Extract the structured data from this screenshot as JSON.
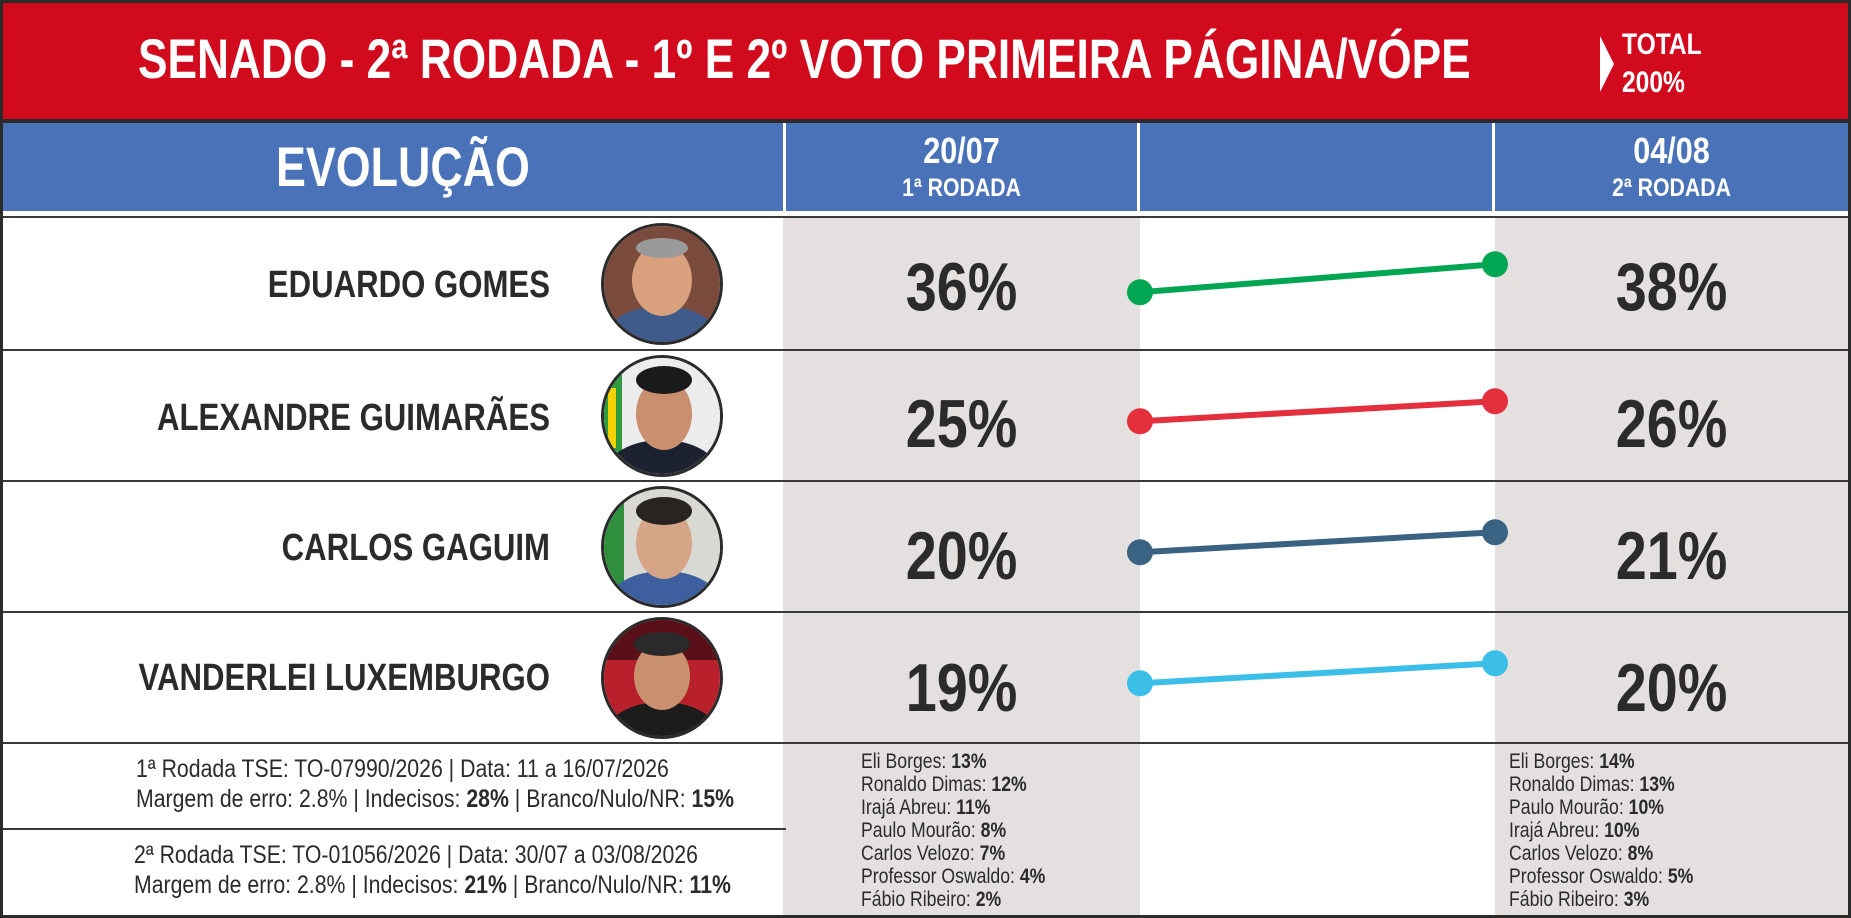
{
  "header": {
    "title": "SENADO - 2ª RODADA - 1º E 2º VOTO PRIMEIRA PÁGINA/VÓPE",
    "total_label": "TOTAL",
    "total_value": "200%",
    "background_color": "#d10a1e"
  },
  "columns": {
    "evolucao_label": "EVOLUÇÃO",
    "round1": {
      "date": "20/07",
      "label": "1ª RODADA"
    },
    "round2": {
      "date": "04/08",
      "label": "2ª RODADA"
    },
    "header_color": "#4a72b8"
  },
  "candidates": [
    {
      "name": "EDUARDO GOMES",
      "r1": "36%",
      "r2": "38%",
      "color": "#00a651",
      "photo": "eduardo-gomes-photo"
    },
    {
      "name": "ALEXANDRE GUIMARÃES",
      "r1": "25%",
      "r2": "26%",
      "color": "#e3303c",
      "photo": "alexandre-guimaraes-photo"
    },
    {
      "name": "CARLOS GAGUIM",
      "r1": "20%",
      "r2": "21%",
      "color": "#3a6282",
      "photo": "carlos-gaguim-photo"
    },
    {
      "name": "VANDERLEI LUXEMBURGO",
      "r1": "19%",
      "r2": "20%",
      "color": "#3bbfe8",
      "photo": "vanderlei-luxemburgo-photo"
    }
  ],
  "footer": {
    "round1_line1": "1ª Rodada TSE: TO-07990/2026 | Data: 11 a 16/07/2026",
    "round1_line2_prefix": "Margem de erro: 2.8% | Indecisos: ",
    "round1_indecisos": "28%",
    "round1_line2_mid": " | Branco/Nulo/NR: ",
    "round1_branco": "15%",
    "round2_line1": "2ª Rodada TSE: TO-01056/2026 | Data: 30/07 a 03/08/2026",
    "round2_line2_prefix": "Margem de erro: 2.8% | Indecisos: ",
    "round2_indecisos": "21%",
    "round2_line2_mid": " | Branco/Nulo/NR: ",
    "round2_branco": "11%"
  },
  "others_round1": [
    {
      "name": "Eli Borges: ",
      "value": "13%"
    },
    {
      "name": "Ronaldo Dimas: ",
      "value": "12%"
    },
    {
      "name": "Irajá Abreu: ",
      "value": "11%"
    },
    {
      "name": "Paulo Mourão: ",
      "value": "8%"
    },
    {
      "name": "Carlos Velozo: ",
      "value": "7%"
    },
    {
      "name": "Professor Oswaldo: ",
      "value": "4%"
    },
    {
      "name": "Fábio Ribeiro: ",
      "value": "2%"
    }
  ],
  "others_round2": [
    {
      "name": "Eli Borges: ",
      "value": "14%"
    },
    {
      "name": "Ronaldo Dimas: ",
      "value": "13%"
    },
    {
      "name": "Paulo Mourão: ",
      "value": "10%"
    },
    {
      "name": "Irajá Abreu: ",
      "value": "10%"
    },
    {
      "name": "Carlos Velozo: ",
      "value": "8%"
    },
    {
      "name": "Professor Oswaldo: ",
      "value": "5%"
    },
    {
      "name": "Fábio Ribeiro: ",
      "value": "3%"
    }
  ],
  "chart_data": {
    "type": "line",
    "categories": [
      "20/07",
      "04/08"
    ],
    "series": [
      {
        "name": "EDUARDO GOMES",
        "values": [
          36,
          38
        ],
        "color": "#00a651"
      },
      {
        "name": "ALEXANDRE GUIMARÃES",
        "values": [
          25,
          26
        ],
        "color": "#e3303c"
      },
      {
        "name": "CARLOS GAGUIM",
        "values": [
          20,
          21
        ],
        "color": "#3a6282"
      },
      {
        "name": "VANDERLEI LUXEMBURGO",
        "values": [
          19,
          20
        ],
        "color": "#3bbfe8"
      }
    ]
  }
}
